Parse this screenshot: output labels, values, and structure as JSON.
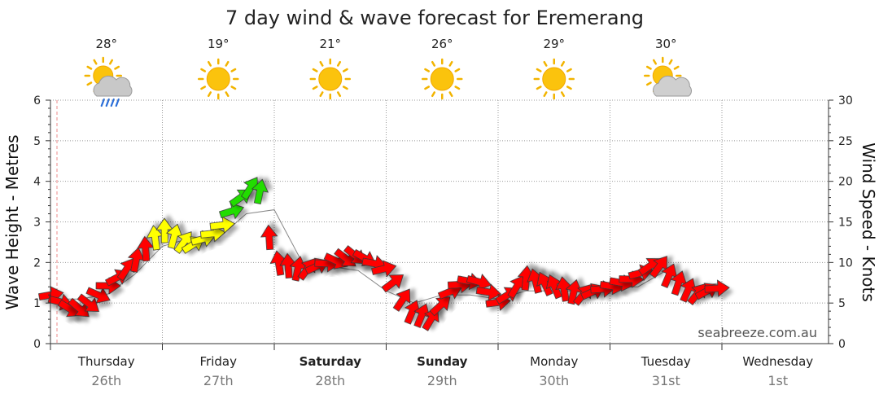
{
  "chart_data": {
    "type": "line",
    "title": "7 day wind & wave forecast for Eremerang",
    "ylabel_left": "Wave Height - Metres",
    "ylabel_right": "Wind Speed - Knots",
    "ylim_left": [
      0,
      6
    ],
    "ylim_right": [
      0,
      30
    ],
    "yticks_left": [
      "0",
      "1",
      "2",
      "3",
      "4",
      "5",
      "6"
    ],
    "yticks_right": [
      "0",
      "5",
      "10",
      "15",
      "20",
      "25",
      "30"
    ],
    "grid": true,
    "credit": "seabreeze.com.au",
    "days": [
      {
        "name": "Thursday",
        "date": "26th",
        "bold": false
      },
      {
        "name": "Friday",
        "date": "27th",
        "bold": false
      },
      {
        "name": "Saturday",
        "date": "28th",
        "bold": true
      },
      {
        "name": "Sunday",
        "date": "29th",
        "bold": true
      },
      {
        "name": "Monday",
        "date": "30th",
        "bold": false
      },
      {
        "name": "Tuesday",
        "date": "31st",
        "bold": false
      },
      {
        "name": "Wednesday",
        "date": "1st",
        "bold": false
      }
    ],
    "forecast_icons": [
      {
        "temp": "28°",
        "icon": "sun-cloud-rain-icon"
      },
      {
        "temp": "19°",
        "icon": "sun-icon"
      },
      {
        "temp": "21°",
        "icon": "sun-icon"
      },
      {
        "temp": "26°",
        "icon": "sun-icon"
      },
      {
        "temp": "29°",
        "icon": "sun-icon"
      },
      {
        "temp": "30°",
        "icon": "sun-cloud-icon"
      }
    ],
    "wind_series": {
      "name": "Wind Speed - Knots",
      "x_days": [
        0.0,
        0.2,
        0.35,
        0.5,
        0.75,
        1.0,
        1.25,
        1.5,
        1.7,
        1.85,
        2.0,
        2.25,
        2.5,
        2.75,
        3.0,
        3.2,
        3.4,
        3.6,
        3.8,
        4.0,
        4.25,
        4.5,
        4.75,
        5.0,
        5.2,
        5.4,
        5.55,
        5.75,
        6.0
      ],
      "knots": [
        6,
        4,
        5,
        7,
        10,
        14,
        12,
        14,
        18,
        20,
        10,
        9,
        10,
        11,
        9,
        4,
        3,
        7,
        8,
        5,
        8,
        7,
        6,
        7,
        8,
        10,
        8,
        6,
        7
      ],
      "colors": [
        "red",
        "red",
        "red",
        "red",
        "red",
        "yellow",
        "yellow",
        "yellow",
        "green",
        "green",
        "red",
        "red",
        "red",
        "red",
        "red",
        "red",
        "red",
        "red",
        "red",
        "red",
        "red",
        "red",
        "red",
        "red",
        "red",
        "red",
        "red",
        "red",
        "red"
      ]
    },
    "wave_series": {
      "name": "Wave Height - Metres",
      "x_days": [
        0.0,
        0.25,
        0.5,
        0.75,
        1.0,
        1.25,
        1.5,
        1.75,
        2.0,
        2.25,
        2.5,
        2.75,
        3.0,
        3.25,
        3.5,
        3.75,
        4.0,
        4.25,
        4.5,
        4.75,
        5.0,
        5.25,
        5.5,
        5.75,
        6.0
      ],
      "metres": [
        1.1,
        1.1,
        1.2,
        1.7,
        2.4,
        2.6,
        2.6,
        3.2,
        3.3,
        2.0,
        1.9,
        1.8,
        1.3,
        1.0,
        1.2,
        1.2,
        1.1,
        1.3,
        1.3,
        1.3,
        1.4,
        1.4,
        1.8,
        1.4,
        1.5
      ]
    }
  }
}
